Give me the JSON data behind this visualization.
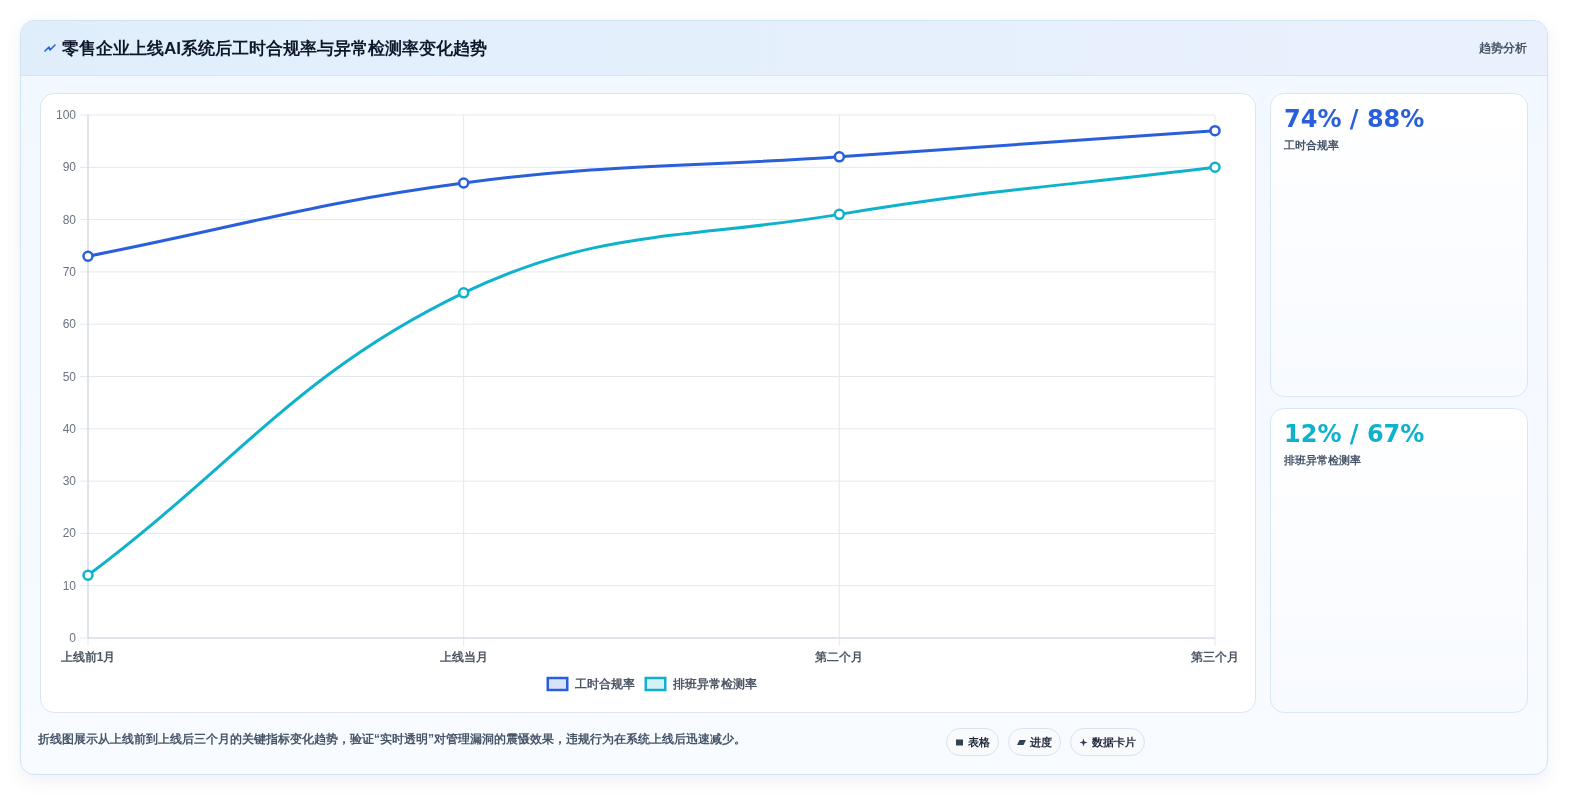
{
  "chart_data": [
    {
      "type": "line",
      "title": "零售企业上线AI系统后工时合规率与异常检测率变化趋势",
      "categories": [
        "上线前1月",
        "上线当月",
        "第二个月",
        "第三个月"
      ],
      "series": [
        {
          "name": "工时合规率",
          "color": "#2a5fdc",
          "values": [
            73,
            87,
            92,
            97
          ]
        },
        {
          "name": "排班异常检测率",
          "color": "#0fb2cc",
          "values": [
            12,
            66,
            81,
            90
          ]
        }
      ],
      "ylim": [
        0,
        100
      ],
      "yticks": [
        0,
        10,
        20,
        30,
        40,
        50,
        60,
        70,
        80,
        90,
        100
      ],
      "grid": true,
      "legend": "bottom",
      "marker": "circle",
      "line_style": "solid",
      "annotations": [
        "趋势分析",
        "折线图展示从上线前到上线后三个月的关键指标变化趋势，验证“实时透明”对管理漏洞的震慑效果，违规行为在系统上线后迅速减少。",
        "表格",
        "进度",
        "数据卡片"
      ]
    },
    {
      "type": "other",
      "title": "74% / 88%",
      "subtitle": "工时合规率"
    },
    {
      "type": "other",
      "title": "12% / 67%",
      "subtitle": "排班异常检测率"
    }
  ]
}
